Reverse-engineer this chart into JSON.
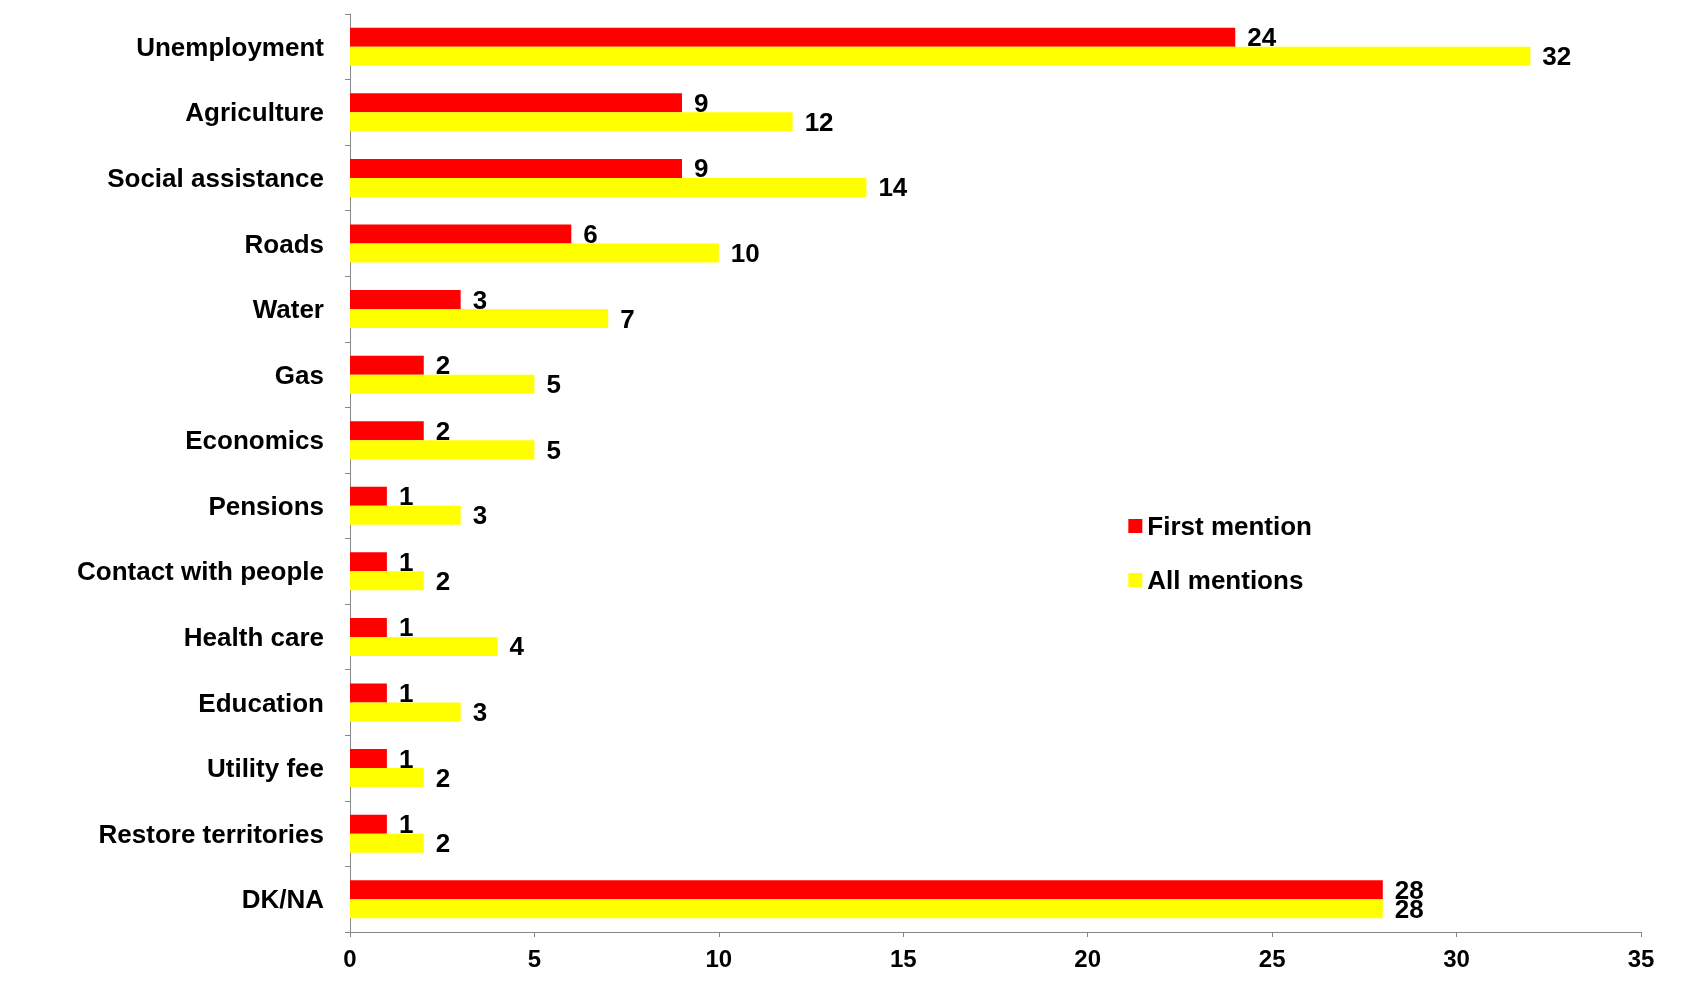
{
  "chart_data": {
    "type": "bar",
    "orientation": "horizontal",
    "categories": [
      "Unemployment",
      "Agriculture",
      "Social assistance",
      "Roads",
      "Water",
      "Gas",
      "Economics",
      "Pensions",
      "Contact with people",
      "Health care",
      "Education",
      "Utility fee",
      "Restore territories",
      "DK/NA"
    ],
    "series": [
      {
        "name": "First mention",
        "color": "#ff0000",
        "values": [
          24,
          9,
          9,
          6,
          3,
          2,
          2,
          1,
          1,
          1,
          1,
          1,
          1,
          28
        ]
      },
      {
        "name": "All mentions",
        "color": "#ffff00",
        "values": [
          32,
          12,
          14,
          10,
          7,
          5,
          5,
          3,
          2,
          4,
          3,
          2,
          2,
          28
        ]
      }
    ],
    "xlim": [
      0,
      35
    ],
    "xticks": [
      0,
      5,
      10,
      15,
      20,
      25,
      30,
      35
    ],
    "grid": false,
    "legend": "right",
    "data_labels": true
  }
}
